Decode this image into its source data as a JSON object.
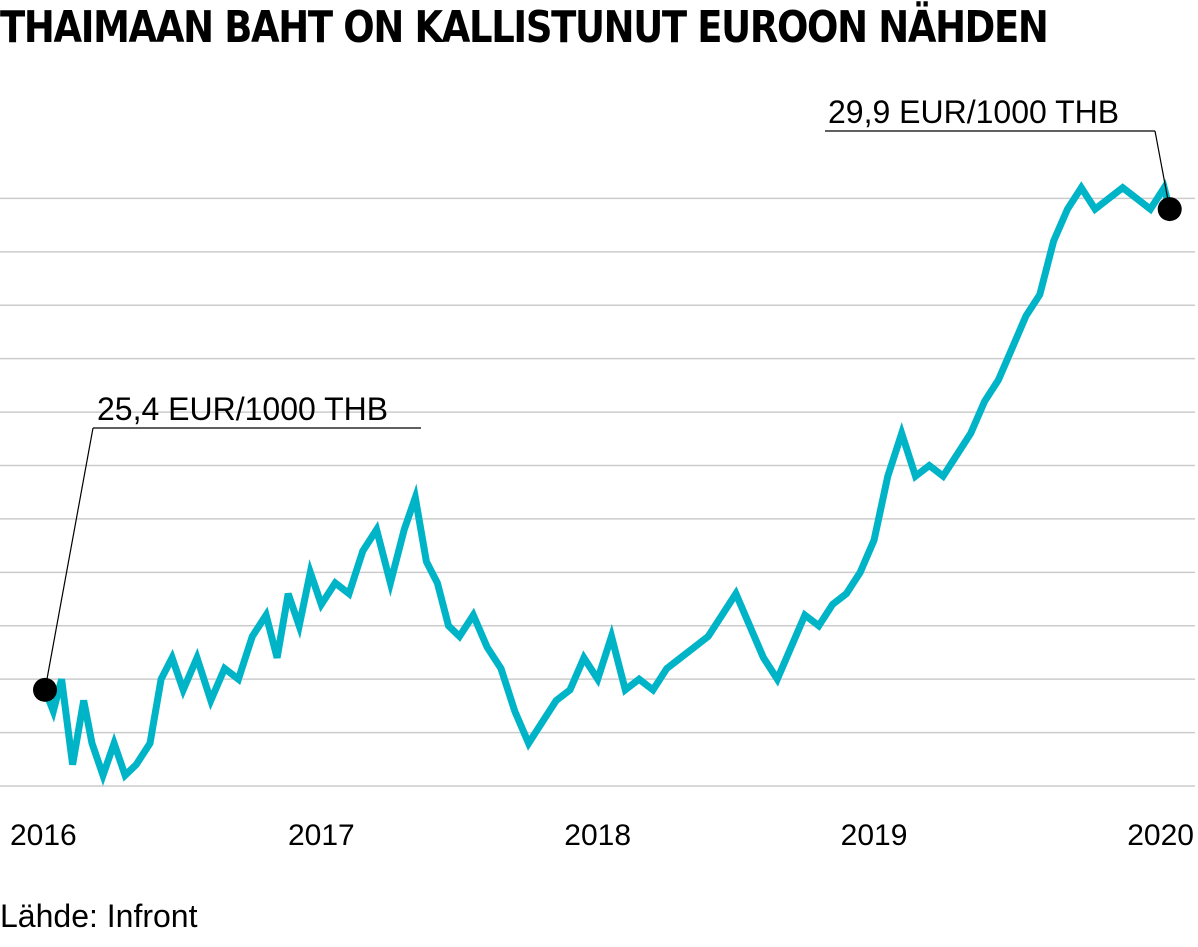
{
  "chart_data": {
    "type": "line",
    "title": "THAIMAAN BAHT ON KALLISTUNUT EUROON NÄHDEN",
    "xlabel": "",
    "ylabel": "EUR/1000 THB",
    "xlim": [
      2016.0,
      2020.1
    ],
    "ylim": [
      24.5,
      30.5
    ],
    "grid": true,
    "x_ticks": [
      {
        "value": 2016,
        "label": "2016"
      },
      {
        "value": 2017,
        "label": "2017"
      },
      {
        "value": 2018,
        "label": "2018"
      },
      {
        "value": 2019,
        "label": "2019"
      },
      {
        "value": 2020,
        "label": "2020"
      }
    ],
    "y_gridlines": [
      24.5,
      25.0,
      25.5,
      26.0,
      26.5,
      27.0,
      27.5,
      28.0,
      28.5,
      29.0,
      29.5,
      30.0
    ],
    "series": [
      {
        "name": "EUR/1000 THB",
        "color": "#00b4c8",
        "points": [
          [
            2016.0,
            25.4
          ],
          [
            2016.03,
            25.2
          ],
          [
            2016.06,
            25.5
          ],
          [
            2016.08,
            25.1
          ],
          [
            2016.1,
            24.7
          ],
          [
            2016.14,
            25.3
          ],
          [
            2016.17,
            24.9
          ],
          [
            2016.21,
            24.6
          ],
          [
            2016.25,
            24.9
          ],
          [
            2016.29,
            24.6
          ],
          [
            2016.33,
            24.7
          ],
          [
            2016.38,
            24.9
          ],
          [
            2016.42,
            25.5
          ],
          [
            2016.46,
            25.7
          ],
          [
            2016.5,
            25.4
          ],
          [
            2016.55,
            25.7
          ],
          [
            2016.6,
            25.3
          ],
          [
            2016.65,
            25.6
          ],
          [
            2016.7,
            25.5
          ],
          [
            2016.75,
            25.9
          ],
          [
            2016.8,
            26.1
          ],
          [
            2016.84,
            25.7
          ],
          [
            2016.88,
            26.3
          ],
          [
            2016.92,
            26.0
          ],
          [
            2016.96,
            26.5
          ],
          [
            2017.0,
            26.2
          ],
          [
            2017.05,
            26.4
          ],
          [
            2017.1,
            26.3
          ],
          [
            2017.15,
            26.7
          ],
          [
            2017.2,
            26.9
          ],
          [
            2017.25,
            26.4
          ],
          [
            2017.3,
            26.9
          ],
          [
            2017.34,
            27.2
          ],
          [
            2017.38,
            26.6
          ],
          [
            2017.42,
            26.4
          ],
          [
            2017.46,
            26.0
          ],
          [
            2017.5,
            25.9
          ],
          [
            2017.55,
            26.1
          ],
          [
            2017.6,
            25.8
          ],
          [
            2017.65,
            25.6
          ],
          [
            2017.7,
            25.2
          ],
          [
            2017.75,
            24.9
          ],
          [
            2017.8,
            25.1
          ],
          [
            2017.85,
            25.3
          ],
          [
            2017.9,
            25.4
          ],
          [
            2017.95,
            25.7
          ],
          [
            2018.0,
            25.5
          ],
          [
            2018.05,
            25.9
          ],
          [
            2018.1,
            25.4
          ],
          [
            2018.15,
            25.5
          ],
          [
            2018.2,
            25.4
          ],
          [
            2018.25,
            25.6
          ],
          [
            2018.3,
            25.7
          ],
          [
            2018.35,
            25.8
          ],
          [
            2018.4,
            25.9
          ],
          [
            2018.45,
            26.1
          ],
          [
            2018.5,
            26.3
          ],
          [
            2018.55,
            26.0
          ],
          [
            2018.6,
            25.7
          ],
          [
            2018.65,
            25.5
          ],
          [
            2018.7,
            25.8
          ],
          [
            2018.75,
            26.1
          ],
          [
            2018.8,
            26.0
          ],
          [
            2018.85,
            26.2
          ],
          [
            2018.9,
            26.3
          ],
          [
            2018.95,
            26.5
          ],
          [
            2019.0,
            26.8
          ],
          [
            2019.05,
            27.4
          ],
          [
            2019.1,
            27.8
          ],
          [
            2019.15,
            27.4
          ],
          [
            2019.2,
            27.5
          ],
          [
            2019.25,
            27.4
          ],
          [
            2019.3,
            27.6
          ],
          [
            2019.35,
            27.8
          ],
          [
            2019.4,
            28.1
          ],
          [
            2019.45,
            28.3
          ],
          [
            2019.5,
            28.6
          ],
          [
            2019.55,
            28.9
          ],
          [
            2019.6,
            29.1
          ],
          [
            2019.65,
            29.6
          ],
          [
            2019.7,
            29.9
          ],
          [
            2019.75,
            30.1
          ],
          [
            2019.8,
            29.9
          ],
          [
            2019.85,
            30.0
          ],
          [
            2019.9,
            30.1
          ],
          [
            2019.95,
            30.0
          ],
          [
            2020.0,
            29.9
          ],
          [
            2020.05,
            30.1
          ],
          [
            2020.07,
            29.9
          ]
        ]
      }
    ],
    "annotations": [
      {
        "label": "25,4 EUR/1000 THB",
        "x": 2016.0,
        "y": 25.4,
        "placement": "upper-left"
      },
      {
        "label": "29,9 EUR/1000 THB",
        "x": 2020.07,
        "y": 29.9,
        "placement": "upper-right"
      }
    ]
  },
  "source": "Lähde: Infront"
}
